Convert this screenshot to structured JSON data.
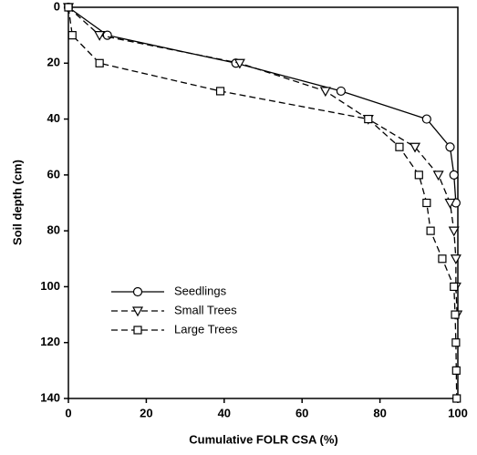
{
  "chart_data": {
    "type": "line",
    "xlabel": "Cumulative FOLR CSA (%)",
    "ylabel": "Soil depth (cm)",
    "xlim": [
      0,
      100
    ],
    "xticks": [
      0,
      20,
      40,
      60,
      80,
      100
    ],
    "ylim": [
      0,
      140
    ],
    "yticks": [
      0,
      20,
      40,
      60,
      80,
      100,
      120,
      140
    ],
    "y_inverted": true,
    "legend": "lower left",
    "series": [
      {
        "name": "Seedlings",
        "color": "#000000",
        "marker": "circle",
        "dash": "solid",
        "x": [
          0,
          10,
          43,
          70,
          92,
          98,
          99,
          99.5
        ],
        "values": [
          0,
          10,
          20,
          30,
          40,
          50,
          60,
          70
        ]
      },
      {
        "name": "Small Trees",
        "color": "#000000",
        "marker": "triangle-down",
        "dash": "dashed",
        "x": [
          0,
          8,
          44,
          66,
          77,
          89,
          95,
          98,
          99,
          99.5,
          99.5,
          99.8
        ],
        "values": [
          0,
          10,
          20,
          30,
          40,
          50,
          60,
          70,
          80,
          90,
          100,
          110
        ]
      },
      {
        "name": "Large Trees",
        "color": "#000000",
        "marker": "square",
        "dash": "dashed",
        "x": [
          0,
          1,
          8,
          39,
          77,
          85,
          90,
          92,
          93,
          96,
          99,
          99.3,
          99.5,
          99.6,
          99.7
        ],
        "values": [
          0,
          10,
          20,
          30,
          40,
          50,
          60,
          70,
          80,
          90,
          100,
          110,
          120,
          130,
          140
        ]
      }
    ]
  }
}
